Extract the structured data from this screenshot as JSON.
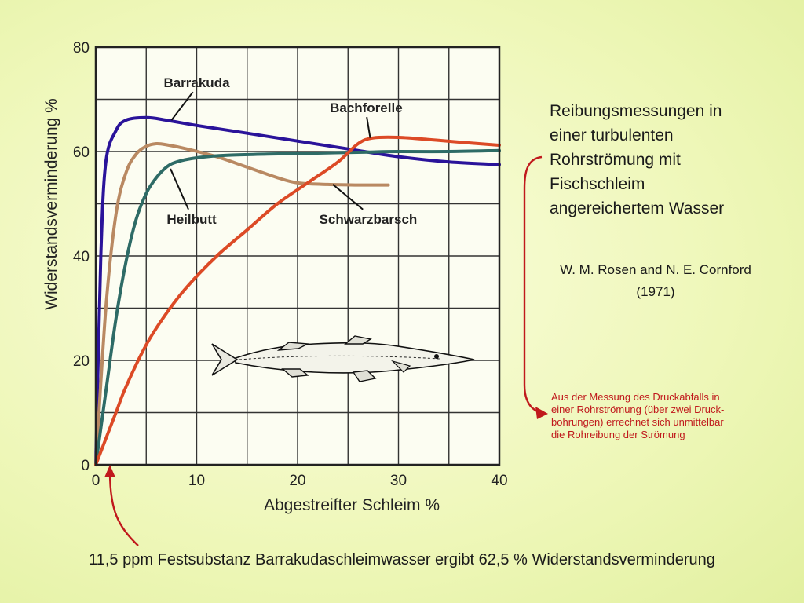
{
  "chart_data": {
    "type": "line",
    "xlabel": "Abgestreifter Schleim  %",
    "ylabel": "Widerstandsverminderung  %",
    "xlim": [
      0,
      40
    ],
    "ylim": [
      0,
      80
    ],
    "xticks": [
      0,
      10,
      20,
      30,
      40
    ],
    "yticks": [
      0,
      20,
      40,
      60,
      80
    ],
    "grid": true,
    "series": [
      {
        "name": "Barrakuda",
        "color": "#2a139a",
        "points": [
          [
            0,
            0
          ],
          [
            0.5,
            40
          ],
          [
            1,
            58
          ],
          [
            2,
            64
          ],
          [
            3,
            66
          ],
          [
            5,
            66.5
          ],
          [
            7,
            66
          ],
          [
            10,
            65
          ],
          [
            15,
            63.5
          ],
          [
            20,
            62
          ],
          [
            25,
            60.5
          ],
          [
            30,
            59
          ],
          [
            35,
            58
          ],
          [
            40,
            57.5
          ]
        ]
      },
      {
        "name": "Heilbutt",
        "color": "#b98962",
        "points": [
          [
            0,
            0
          ],
          [
            1,
            30
          ],
          [
            2,
            48
          ],
          [
            3,
            56
          ],
          [
            4,
            59.5
          ],
          [
            5,
            61
          ],
          [
            6,
            61.5
          ],
          [
            7,
            61.3
          ],
          [
            9,
            60.5
          ],
          [
            12,
            59
          ],
          [
            15,
            57
          ],
          [
            18,
            55
          ],
          [
            20,
            54
          ],
          [
            23,
            53.7
          ],
          [
            26,
            53.6
          ],
          [
            29,
            53.6
          ]
        ]
      },
      {
        "name": "Schwarzbarsch",
        "color": "#2e6b66",
        "points": [
          [
            0,
            0
          ],
          [
            1,
            14
          ],
          [
            2,
            28
          ],
          [
            3,
            39
          ],
          [
            4,
            47
          ],
          [
            5,
            52
          ],
          [
            6,
            55
          ],
          [
            7,
            57
          ],
          [
            8,
            58
          ],
          [
            10,
            58.8
          ],
          [
            13,
            59.3
          ],
          [
            17,
            59.5
          ],
          [
            22,
            59.7
          ],
          [
            27,
            59.9
          ],
          [
            30,
            60
          ],
          [
            35,
            60
          ],
          [
            40,
            60.2
          ]
        ]
      },
      {
        "name": "Bachforelle",
        "color": "#dc4a26",
        "points": [
          [
            0,
            0
          ],
          [
            1,
            5
          ],
          [
            2,
            10
          ],
          [
            3,
            15
          ],
          [
            5,
            23
          ],
          [
            7,
            29
          ],
          [
            9,
            34
          ],
          [
            12,
            40
          ],
          [
            15,
            45
          ],
          [
            18,
            50
          ],
          [
            21,
            54
          ],
          [
            24,
            58
          ],
          [
            26,
            61.5
          ],
          [
            27.5,
            62.6
          ],
          [
            30,
            62.7
          ],
          [
            33,
            62.3
          ],
          [
            36,
            61.8
          ],
          [
            40,
            61.2
          ]
        ]
      }
    ],
    "labels": [
      {
        "text": "Barrakuda",
        "x": 10,
        "y": 72.3,
        "anchor_x": 7.5,
        "anchor_y": 66
      },
      {
        "text": "Bachforelle",
        "x": 26.8,
        "y": 67.5,
        "anchor_x": 27.2,
        "anchor_y": 62.6
      },
      {
        "text": "Heilbutt",
        "x": 9.5,
        "y": 46.2,
        "anchor_x": 7.4,
        "anchor_y": 56.7
      },
      {
        "text": "Schwarzbarsch",
        "x": 27,
        "y": 46.2,
        "anchor_x": 23.5,
        "anchor_y": 53.7
      }
    ]
  },
  "side": {
    "title_lines": [
      "Reibungsmessungen in",
      "einer turbulenten",
      "Rohrströmung mit",
      "Fischschleim",
      "angereichertem Wasser"
    ],
    "citation_line1": "W. M. Rosen and N. E. Cornford",
    "citation_line2": "(1971)",
    "note_lines": [
      "Aus der Messung des Druckabfalls in",
      "einer Rohrströmung (über zwei Druck-",
      "bohrungen) errechnet sich unmittelbar",
      "die Rohreibung der Strömung"
    ]
  },
  "footnote": "11,5 ppm Festsubstanz Barrakudaschleimwasser ergibt 62,5 % Widerstandsverminderung",
  "colors": {
    "accent_red": "#c0191c",
    "grid": "#333333"
  }
}
